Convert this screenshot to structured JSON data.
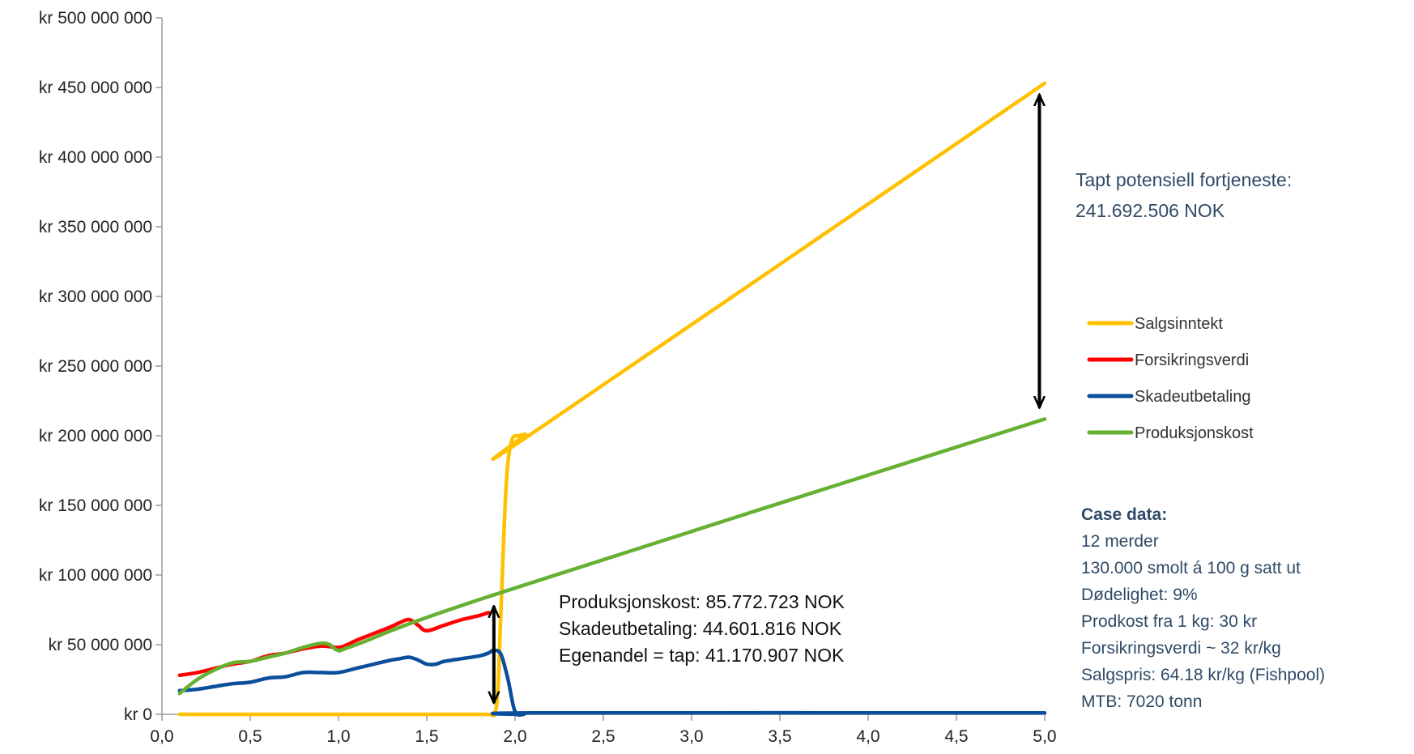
{
  "chart_data": {
    "type": "line",
    "title": "",
    "xlabel": "",
    "ylabel": "",
    "xlim": [
      0,
      5
    ],
    "ylim": [
      0,
      500000000
    ],
    "x_ticks": [
      0,
      0.5,
      1.0,
      1.5,
      2.0,
      2.5,
      3.0,
      3.5,
      4.0,
      4.5,
      5.0
    ],
    "x_tick_labels": [
      "0,0",
      "0,5",
      "1,0",
      "1,5",
      "2,0",
      "2,5",
      "3,0",
      "3,5",
      "4,0",
      "4,5",
      "5,0"
    ],
    "y_ticks": [
      0,
      50000000,
      100000000,
      150000000,
      200000000,
      250000000,
      300000000,
      350000000,
      400000000,
      450000000,
      500000000
    ],
    "y_tick_labels": [
      "kr 0",
      "kr 50 000 000",
      "kr 100 000 000",
      "kr 150 000 000",
      "kr 200 000 000",
      "kr 250 000 000",
      "kr 300 000 000",
      "kr 350 000 000",
      "kr 400 000 000",
      "kr 450 000 000",
      "kr 500 000 000"
    ],
    "grid": false,
    "legend_position": "right",
    "series": [
      {
        "name": "Salgsinntekt",
        "color": "#FFC000",
        "x": [
          0.1,
          1.0,
          1.8,
          1.87,
          1.9,
          1.92,
          1.95,
          1.98,
          2.02,
          2.06,
          2.1,
          5.0
        ],
        "y": [
          0,
          0,
          0,
          0,
          12000000,
          75000000,
          165000000,
          196000000,
          200000000,
          201000000,
          202000000,
          453000000
        ]
      },
      {
        "name": "Forsikringsverdi",
        "color": "#FF0000",
        "x": [
          0.1,
          0.2,
          0.3,
          0.4,
          0.5,
          0.6,
          0.7,
          0.8,
          0.9,
          1.0,
          1.05,
          1.1,
          1.2,
          1.3,
          1.35,
          1.4,
          1.45,
          1.5,
          1.6,
          1.7,
          1.8,
          1.85
        ],
        "y": [
          28000000,
          30000000,
          33000000,
          36000000,
          38000000,
          42000000,
          44000000,
          47000000,
          49000000,
          48000000,
          50000000,
          53000000,
          58000000,
          63000000,
          66000000,
          68000000,
          64000000,
          60000000,
          64000000,
          68000000,
          71000000,
          73000000
        ]
      },
      {
        "name": "Skadeutbetaling",
        "color": "#0B4E9B",
        "x": [
          0.1,
          0.2,
          0.3,
          0.4,
          0.5,
          0.6,
          0.7,
          0.8,
          0.9,
          1.0,
          1.1,
          1.2,
          1.3,
          1.35,
          1.4,
          1.45,
          1.5,
          1.55,
          1.6,
          1.7,
          1.8,
          1.85,
          1.88,
          1.92,
          1.96,
          2.0,
          2.05,
          2.1,
          5.0
        ],
        "y": [
          17000000,
          18000000,
          20000000,
          22000000,
          23000000,
          26000000,
          27000000,
          30000000,
          30000000,
          30000000,
          33000000,
          36000000,
          39000000,
          40000000,
          41000000,
          39000000,
          36000000,
          36000000,
          38000000,
          40000000,
          42000000,
          44000000,
          46000000,
          43000000,
          25000000,
          2000000,
          0,
          1000000,
          1000000
        ]
      },
      {
        "name": "Produksjonskost",
        "color": "#66B032",
        "x": [
          0.1,
          0.2,
          0.3,
          0.4,
          0.5,
          0.6,
          0.7,
          0.8,
          0.9,
          0.95,
          1.0,
          1.1,
          1.88,
          5.0
        ],
        "y": [
          15000000,
          25000000,
          32000000,
          37000000,
          38000000,
          41000000,
          44000000,
          48000000,
          51000000,
          50000000,
          46000000,
          50000000,
          85772723,
          212000000
        ]
      }
    ],
    "annotations": {
      "tapt_fortjeneste_line1": "Tapt potensiell fortjeneste:",
      "tapt_fortjeneste_line2": "241.692.506 NOK",
      "tapt_arrow": {
        "x": 5.0,
        "y_from": 453000000,
        "y_to": 212000000
      },
      "losses_lines": [
        "Produksjonskost: 85.772.723 NOK",
        "Skadeutbetaling: 44.601.816 NOK",
        "Egenandel = tap: 41.170.907 NOK"
      ],
      "losses_arrow": {
        "x": 1.88,
        "y_from": 85772723,
        "y_to": 0
      }
    },
    "case_data": {
      "title": "Case data:",
      "lines": [
        "12 merder",
        "130.000 smolt á 100 g satt ut",
        "Dødelighet: 9%",
        "Prodkost fra 1 kg: 30 kr",
        "Forsikringsverdi ~ 32 kr/kg",
        "Salgspris: 64.18 kr/kg (Fishpool)",
        "MTB: 7020 tonn"
      ]
    }
  }
}
